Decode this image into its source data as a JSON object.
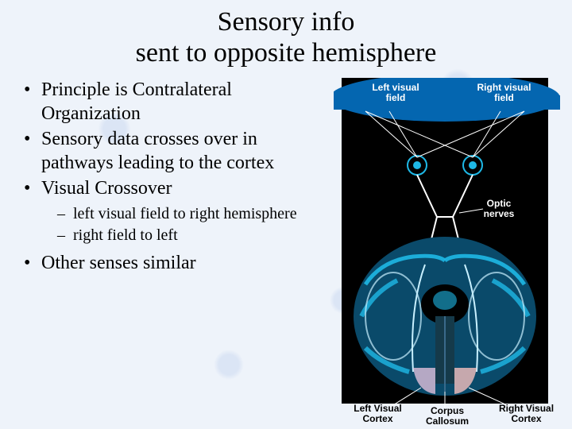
{
  "title_line1": "Sensory info",
  "title_line2": "sent to opposite hemisphere",
  "bullets": {
    "b1": "Principle is Contralateral Organization",
    "b2": "Sensory data crosses over in pathways leading to the cortex",
    "b3": "Visual Crossover",
    "s1": "left visual field to right hemisphere",
    "s2": "right field to left",
    "b4": "Other senses similar"
  },
  "diagram": {
    "left_field": "Left visual\nfield",
    "right_field": "Right visual\nfield",
    "optic_nerves": "Optic\nnerves",
    "left_cortex": "Left Visual\nCortex",
    "corpus_callosum": "Corpus\nCallosum",
    "right_cortex": "Right Visual\nCortex",
    "colors": {
      "bg": "#000000",
      "header_blue": "#0466b0",
      "brain_cyan": "#1eb8e6",
      "brain_dark": "#0a4a6a",
      "brain_highlight": "#c8f0ff",
      "left_cortex_fill": "#d4b8d4",
      "right_cortex_fill": "#e8b8b8",
      "label_white": "#ffffff",
      "label_black": "#000000",
      "line": "#ffffff"
    },
    "fontsize_field": 12,
    "fontsize_optic": 12,
    "fontsize_bottom": 12
  }
}
